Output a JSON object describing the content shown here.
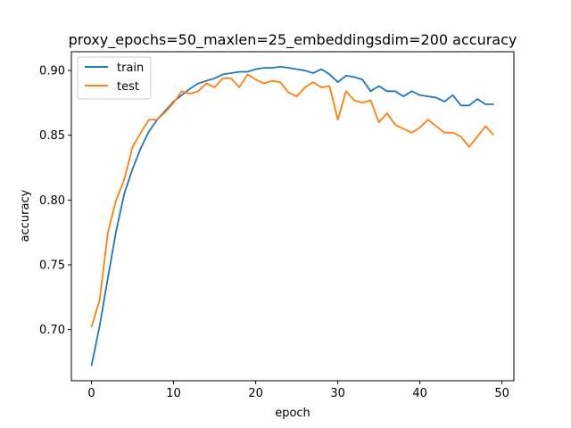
{
  "chart_data": {
    "type": "line",
    "title": "proxy_epochs=50_maxlen=25_embeddingsdim=200 accuracy",
    "xlabel": "epoch",
    "ylabel": "accuracy",
    "xlim": [
      -2.45,
      51.45
    ],
    "ylim": [
      0.6605,
      0.9145
    ],
    "xticks": [
      0,
      10,
      20,
      30,
      40,
      50
    ],
    "yticks": [
      0.7,
      0.75,
      0.8,
      0.85,
      0.9
    ],
    "ytick_labels": [
      "0.70",
      "0.75",
      "0.80",
      "0.85",
      "0.90"
    ],
    "grid": false,
    "legend_position": "upper-left",
    "x": [
      0,
      1,
      2,
      3,
      4,
      5,
      6,
      7,
      8,
      9,
      10,
      11,
      12,
      13,
      14,
      15,
      16,
      17,
      18,
      19,
      20,
      21,
      22,
      23,
      24,
      25,
      26,
      27,
      28,
      29,
      30,
      31,
      32,
      33,
      34,
      35,
      36,
      37,
      38,
      39,
      40,
      41,
      42,
      43,
      44,
      45,
      46,
      47,
      48,
      49
    ],
    "series": [
      {
        "name": "train",
        "color": "#1f77b4",
        "values": [
          0.672,
          0.703,
          0.74,
          0.776,
          0.805,
          0.824,
          0.84,
          0.853,
          0.862,
          0.869,
          0.876,
          0.881,
          0.886,
          0.89,
          0.892,
          0.894,
          0.897,
          0.898,
          0.899,
          0.899,
          0.901,
          0.902,
          0.902,
          0.903,
          0.902,
          0.901,
          0.9,
          0.898,
          0.901,
          0.897,
          0.891,
          0.896,
          0.895,
          0.893,
          0.884,
          0.888,
          0.884,
          0.884,
          0.88,
          0.884,
          0.881,
          0.88,
          0.879,
          0.876,
          0.881,
          0.873,
          0.873,
          0.878,
          0.874,
          0.874
        ]
      },
      {
        "name": "test",
        "color": "#ff7f0e",
        "values": [
          0.702,
          0.723,
          0.775,
          0.8,
          0.816,
          0.841,
          0.852,
          0.862,
          0.862,
          0.868,
          0.875,
          0.884,
          0.882,
          0.884,
          0.89,
          0.887,
          0.894,
          0.894,
          0.887,
          0.897,
          0.893,
          0.89,
          0.892,
          0.891,
          0.883,
          0.88,
          0.887,
          0.891,
          0.887,
          0.888,
          0.862,
          0.884,
          0.877,
          0.875,
          0.877,
          0.86,
          0.867,
          0.858,
          0.855,
          0.852,
          0.856,
          0.862,
          0.857,
          0.852,
          0.852,
          0.849,
          0.841,
          0.849,
          0.857,
          0.85
        ]
      }
    ]
  }
}
